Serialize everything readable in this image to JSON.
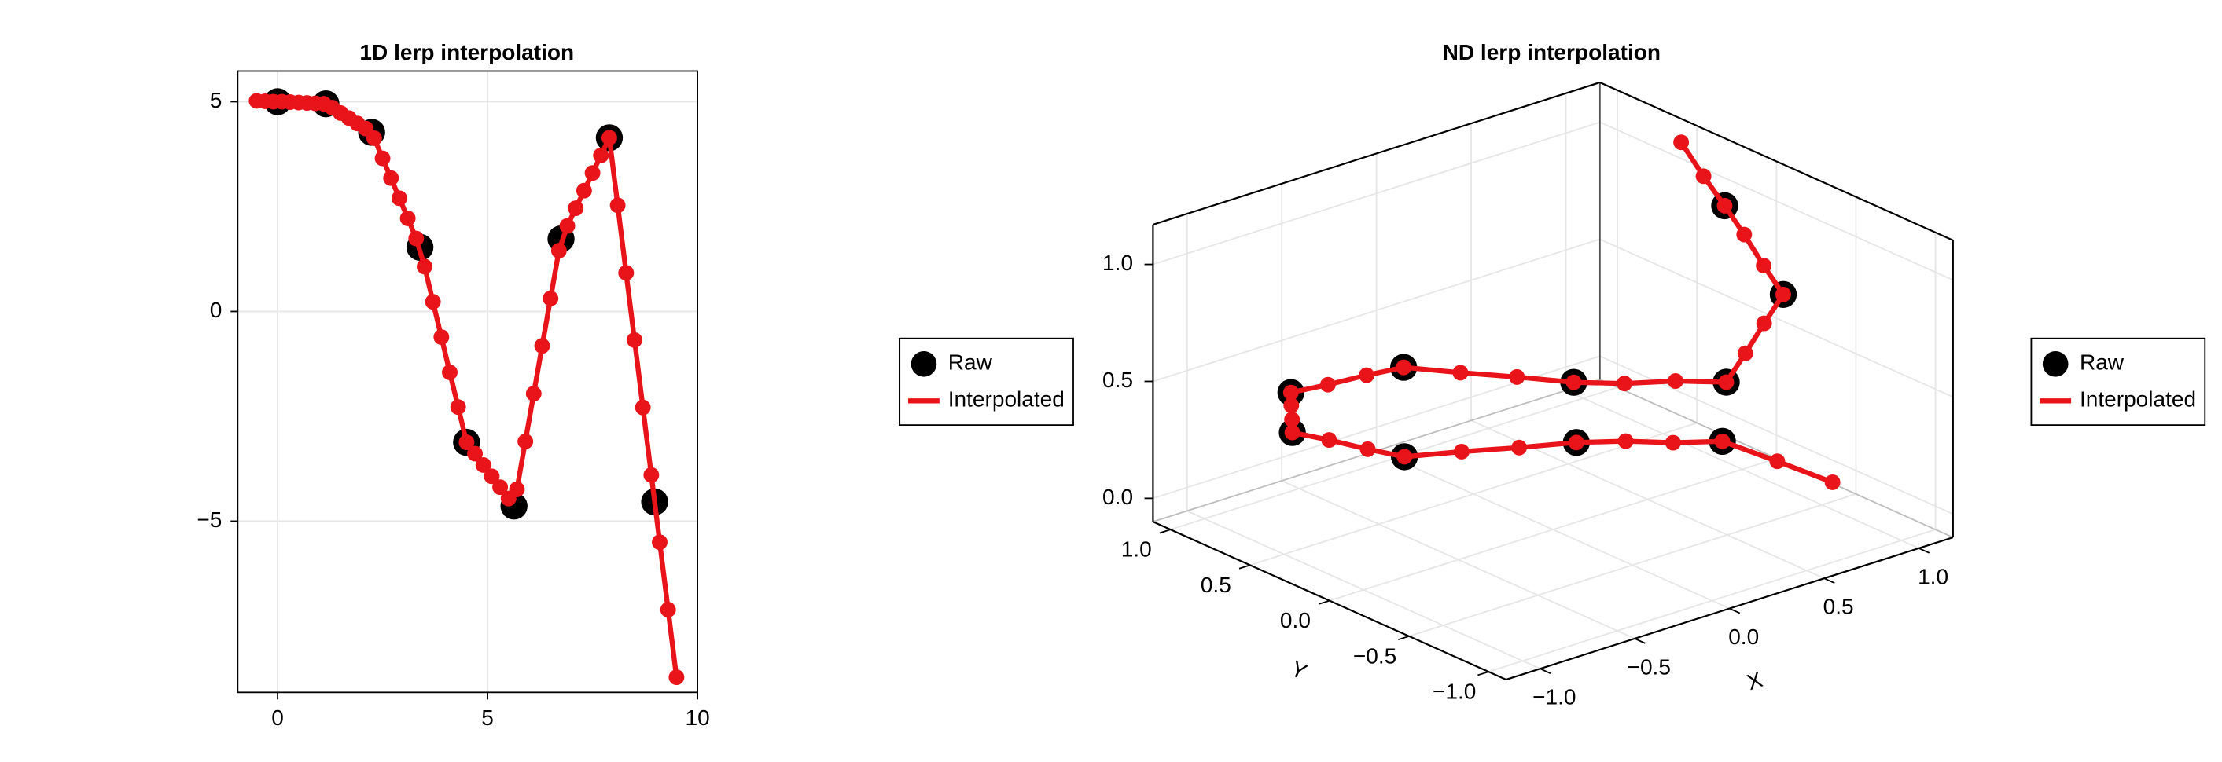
{
  "chart_data": [
    {
      "type": "line",
      "title": "1D lerp interpolation",
      "xlim": [
        -0.95,
        10
      ],
      "ylim": [
        -9.08,
        5.73
      ],
      "xticks": [
        0,
        5,
        10
      ],
      "yticks": [
        {
          "value": -5,
          "label": "−5"
        },
        0,
        5
      ],
      "grid": true,
      "legend": "right",
      "series": [
        {
          "name": "Raw",
          "color": "#000000",
          "line": false,
          "markers": true,
          "x": [
            0,
            1.15,
            2.24,
            3.39,
            4.5,
            5.63,
            6.75,
            7.9,
            8.98
          ],
          "values": [
            5,
            4.95,
            4.27,
            1.53,
            -3.12,
            -4.64,
            1.73,
            4.14,
            -4.54
          ]
        },
        {
          "name": "Interpolated",
          "color": "#e8141a",
          "line": true,
          "markers": true,
          "x": [
            -0.5,
            -0.3,
            -0.1,
            0.1,
            0.3,
            0.5,
            0.7,
            0.9,
            1.1,
            1.3,
            1.5,
            1.7,
            1.9,
            2.1,
            2.3,
            2.5,
            2.7,
            2.9,
            3.1,
            3.3,
            3.5,
            3.7,
            3.9,
            4.1,
            4.3,
            4.5,
            4.7,
            4.9,
            5.1,
            5.3,
            5.5,
            5.7,
            5.9,
            6.1,
            6.3,
            6.5,
            6.7,
            6.9,
            7.1,
            7.3,
            7.5,
            7.7,
            7.9,
            8.1,
            8.3,
            8.5,
            8.7,
            8.9,
            9.1,
            9.3,
            9.5
          ],
          "values": [
            5.02,
            5.01,
            5.0,
            5.0,
            4.99,
            4.98,
            4.97,
            4.96,
            4.95,
            4.86,
            4.73,
            4.61,
            4.48,
            4.36,
            4.13,
            3.65,
            3.18,
            2.7,
            2.22,
            1.74,
            1.07,
            0.23,
            -0.61,
            -1.45,
            -2.28,
            -3.12,
            -3.39,
            -3.66,
            -3.93,
            -4.19,
            -4.46,
            -4.24,
            -3.1,
            -1.96,
            -0.82,
            0.31,
            1.45,
            2.04,
            2.46,
            2.88,
            3.3,
            3.72,
            4.14,
            2.53,
            0.92,
            -0.68,
            -2.29,
            -3.9,
            -5.5,
            -7.11,
            -8.72
          ]
        }
      ]
    },
    {
      "type": "scatter3d",
      "title": "ND lerp interpolation",
      "xlim": [
        -1.18,
        1.18
      ],
      "ylim": [
        -1.11,
        1.11
      ],
      "zlim": [
        -0.1,
        1.17
      ],
      "xticks": [
        {
          "value": -1,
          "label": "−1.0"
        },
        {
          "value": -0.5,
          "label": "−0.5"
        },
        {
          "value": 0,
          "label": "0.0"
        },
        0.5,
        {
          "value": 1,
          "label": "1.0"
        }
      ],
      "yticks": [
        {
          "value": -1,
          "label": "−1.0"
        },
        {
          "value": -0.5,
          "label": "−0.5"
        },
        {
          "value": 0,
          "label": "0.0"
        },
        0.5,
        {
          "value": 1,
          "label": "1.0"
        }
      ],
      "zticks": [
        {
          "value": 0,
          "label": "0.0"
        },
        0.5,
        {
          "value": 1,
          "label": "1.0"
        }
      ],
      "xlabel": "X",
      "ylabel": "Y",
      "grid": true,
      "legend": "right",
      "series": [
        {
          "name": "Raw",
          "color": "#000000",
          "line": false,
          "markers": true,
          "x": [
            0.97,
            0.35,
            -0.44,
            -0.78,
            -0.67,
            -0.31,
            -0.05,
            0.26,
            0.88,
            1.15
          ],
          "y": [
            0.09,
            0.27,
            0.41,
            0.71,
            0.85,
            0.57,
            -0.19,
            -0.78,
            -0.4,
            0.29
          ],
          "z": [
            0.0,
            0.1,
            0.2,
            0.3,
            0.4,
            0.5,
            0.6,
            0.7,
            0.8,
            0.9
          ]
        },
        {
          "name": "Interpolated",
          "color": "#e8141a",
          "line": true,
          "markers": true,
          "x": [
            1.14,
            1.05,
            0.97,
            0.76,
            0.56,
            0.35,
            0.09,
            -0.18,
            -0.44,
            -0.55,
            -0.67,
            -0.78,
            -0.74,
            -0.71,
            -0.67,
            -0.55,
            -0.43,
            -0.31,
            -0.22,
            -0.14,
            -0.05,
            0.05,
            0.16,
            0.26,
            0.47,
            0.67,
            0.88,
            0.97,
            1.06,
            1.15,
            1.24,
            1.34
          ],
          "y": [
            -0.4,
            -0.16,
            0.09,
            0.15,
            0.21,
            0.27,
            0.32,
            0.36,
            0.41,
            0.51,
            0.61,
            0.71,
            0.76,
            0.8,
            0.85,
            0.76,
            0.66,
            0.57,
            0.32,
            0.06,
            -0.19,
            -0.39,
            -0.58,
            -0.78,
            -0.65,
            -0.53,
            -0.4,
            -0.17,
            0.06,
            0.29,
            0.53,
            0.79
          ],
          "z": [
            -0.07,
            -0.03,
            0.0,
            0.03,
            0.07,
            0.1,
            0.13,
            0.17,
            0.2,
            0.23,
            0.27,
            0.3,
            0.33,
            0.37,
            0.4,
            0.43,
            0.47,
            0.5,
            0.53,
            0.57,
            0.6,
            0.63,
            0.67,
            0.7,
            0.73,
            0.77,
            0.8,
            0.83,
            0.87,
            0.9,
            0.93,
            0.97
          ]
        }
      ]
    }
  ]
}
